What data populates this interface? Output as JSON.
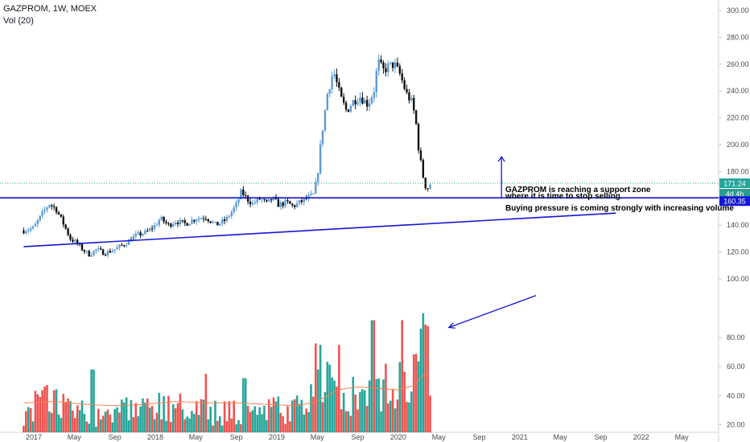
{
  "header": {
    "symbol_line": "GAZPROM, 1W, MOEX",
    "volume_line": "Vol (20)"
  },
  "chart_data": {
    "type": "candlestick",
    "symbol": "GAZPROM",
    "interval": "1W",
    "exchange": "MOEX",
    "x_ticks": [
      "2017",
      "May",
      "Sep",
      "2018",
      "May",
      "Sep",
      "2019",
      "May",
      "Sep",
      "2020",
      "May",
      "Sep",
      "2021",
      "May",
      "Sep",
      "2022",
      "May"
    ],
    "x_tick_months": [
      0,
      4,
      8,
      12,
      16,
      20,
      24,
      28,
      32,
      36,
      40,
      44,
      48,
      52,
      56,
      60,
      64
    ],
    "y_ticks": [
      300,
      280,
      260,
      240,
      220,
      200,
      180,
      160,
      140,
      120,
      100,
      80,
      60,
      40,
      20
    ],
    "price_ylim": [
      100,
      300
    ],
    "volume_ylim": [
      18,
      100
    ],
    "volume_pane_y_ticks": [
      100,
      80,
      60,
      40,
      20
    ],
    "price_labels": {
      "last": "171.24",
      "countdown": "4d 4h",
      "support": "160.35"
    },
    "price_anchors": [
      {
        "m": -1.0,
        "p": 136
      },
      {
        "m": 0.0,
        "p": 138
      },
      {
        "m": 0.8,
        "p": 148
      },
      {
        "m": 1.5,
        "p": 156
      },
      {
        "m": 2.2,
        "p": 152
      },
      {
        "m": 3.0,
        "p": 140
      },
      {
        "m": 3.6,
        "p": 130
      },
      {
        "m": 4.2,
        "p": 127
      },
      {
        "m": 4.8,
        "p": 122
      },
      {
        "m": 5.5,
        "p": 118
      },
      {
        "m": 6.2,
        "p": 122
      },
      {
        "m": 7.0,
        "p": 119
      },
      {
        "m": 8.0,
        "p": 122
      },
      {
        "m": 9.0,
        "p": 126
      },
      {
        "m": 10.0,
        "p": 132
      },
      {
        "m": 11.2,
        "p": 135
      },
      {
        "m": 12.0,
        "p": 140
      },
      {
        "m": 12.5,
        "p": 145
      },
      {
        "m": 13.3,
        "p": 140
      },
      {
        "m": 14.0,
        "p": 143
      },
      {
        "m": 15.0,
        "p": 141
      },
      {
        "m": 16.0,
        "p": 145
      },
      {
        "m": 17.0,
        "p": 146
      },
      {
        "m": 18.0,
        "p": 140
      },
      {
        "m": 19.0,
        "p": 144
      },
      {
        "m": 20.0,
        "p": 155
      },
      {
        "m": 20.5,
        "p": 165
      },
      {
        "m": 21.0,
        "p": 160
      },
      {
        "m": 21.6,
        "p": 156
      },
      {
        "m": 22.4,
        "p": 160
      },
      {
        "m": 23.0,
        "p": 156
      },
      {
        "m": 23.6,
        "p": 160
      },
      {
        "m": 24.2,
        "p": 155
      },
      {
        "m": 25.0,
        "p": 157
      },
      {
        "m": 25.6,
        "p": 154
      },
      {
        "m": 26.3,
        "p": 157
      },
      {
        "m": 27.0,
        "p": 160
      },
      {
        "m": 27.6,
        "p": 162
      },
      {
        "m": 28.0,
        "p": 175
      },
      {
        "m": 28.4,
        "p": 205
      },
      {
        "m": 29.0,
        "p": 238
      },
      {
        "m": 29.6,
        "p": 255
      },
      {
        "m": 30.3,
        "p": 235
      },
      {
        "m": 30.9,
        "p": 225
      },
      {
        "m": 31.5,
        "p": 232
      },
      {
        "m": 32.2,
        "p": 236
      },
      {
        "m": 33.0,
        "p": 230
      },
      {
        "m": 33.6,
        "p": 240
      },
      {
        "m": 34.0,
        "p": 262
      },
      {
        "m": 34.5,
        "p": 255
      },
      {
        "m": 35.0,
        "p": 258
      },
      {
        "m": 35.6,
        "p": 260
      },
      {
        "m": 36.2,
        "p": 252
      },
      {
        "m": 36.8,
        "p": 238
      },
      {
        "m": 37.3,
        "p": 232
      },
      {
        "m": 37.7,
        "p": 220
      },
      {
        "m": 38.0,
        "p": 198
      },
      {
        "m": 38.4,
        "p": 178
      },
      {
        "m": 38.8,
        "p": 166
      },
      {
        "m": 39.2,
        "p": 171.24
      }
    ],
    "volume_anchors": [
      {
        "m": -1.0,
        "v": 32
      },
      {
        "m": 1.0,
        "v": 38
      },
      {
        "m": 3.0,
        "v": 35
      },
      {
        "m": 5.0,
        "v": 32
      },
      {
        "m": 7.0,
        "v": 30
      },
      {
        "m": 9.0,
        "v": 30
      },
      {
        "m": 11.0,
        "v": 31
      },
      {
        "m": 13.0,
        "v": 34
      },
      {
        "m": 15.0,
        "v": 32
      },
      {
        "m": 17.0,
        "v": 30
      },
      {
        "m": 19.0,
        "v": 30
      },
      {
        "m": 21.0,
        "v": 32
      },
      {
        "m": 23.0,
        "v": 31
      },
      {
        "m": 25.0,
        "v": 30
      },
      {
        "m": 27.0,
        "v": 33
      },
      {
        "m": 28.5,
        "v": 50
      },
      {
        "m": 30.0,
        "v": 48
      },
      {
        "m": 32.0,
        "v": 40
      },
      {
        "m": 34.0,
        "v": 46
      },
      {
        "m": 36.0,
        "v": 50
      },
      {
        "m": 37.5,
        "v": 60
      },
      {
        "m": 38.5,
        "v": 78
      },
      {
        "m": 39.2,
        "v": 28
      }
    ],
    "volume_spikes": [
      {
        "m": 5.8,
        "v": 58
      },
      {
        "m": 17.0,
        "v": 55
      },
      {
        "m": 20.8,
        "v": 52
      },
      {
        "m": 27.8,
        "v": 76
      },
      {
        "m": 28.3,
        "v": 75
      },
      {
        "m": 30.2,
        "v": 75
      },
      {
        "m": 33.5,
        "v": 92
      },
      {
        "m": 34.7,
        "v": 62
      },
      {
        "m": 36.3,
        "v": 92
      },
      {
        "m": 38.6,
        "v": 89
      },
      {
        "m": 38.9,
        "v": 88
      }
    ],
    "volume_ma_anchors": [
      {
        "m": -1.0,
        "v": 35
      },
      {
        "m": 2.0,
        "v": 36
      },
      {
        "m": 5.0,
        "v": 34
      },
      {
        "m": 8.0,
        "v": 33
      },
      {
        "m": 11.0,
        "v": 34
      },
      {
        "m": 14.0,
        "v": 36
      },
      {
        "m": 17.0,
        "v": 35
      },
      {
        "m": 20.0,
        "v": 35
      },
      {
        "m": 23.0,
        "v": 34
      },
      {
        "m": 26.0,
        "v": 33
      },
      {
        "m": 28.0,
        "v": 36
      },
      {
        "m": 30.0,
        "v": 44
      },
      {
        "m": 32.0,
        "v": 46
      },
      {
        "m": 34.0,
        "v": 45
      },
      {
        "m": 36.0,
        "v": 44
      },
      {
        "m": 37.5,
        "v": 47
      },
      {
        "m": 38.5,
        "v": 54
      },
      {
        "m": 39.0,
        "v": 55
      }
    ],
    "horizontal_support_price": 160.35,
    "trendline": {
      "m1": -1.0,
      "p1": 124,
      "m2": 57.5,
      "p2": 149
    },
    "up_arrow": {
      "m": 46.2,
      "p_from": 160.5,
      "p_to": 191
    },
    "volume_arrow": {
      "m_from": 49.6,
      "v_from": 109,
      "m_to": 41.0,
      "v_to": 87
    },
    "annotations": [
      "GAZPROM is reaching a support zone",
      "where it is time to stop selling.",
      "Buying pressure is coming strongly with increasing volume"
    ],
    "colors": {
      "up_candle": "#5b9bd5",
      "down_candle": "#111111",
      "volume_up": "#26a69a",
      "volume_down": "#ef5350",
      "volume_ma": "#ff7f50",
      "drawing": "#1515d6",
      "last_price": "#26a69a",
      "support_label": "#1515d6"
    }
  }
}
